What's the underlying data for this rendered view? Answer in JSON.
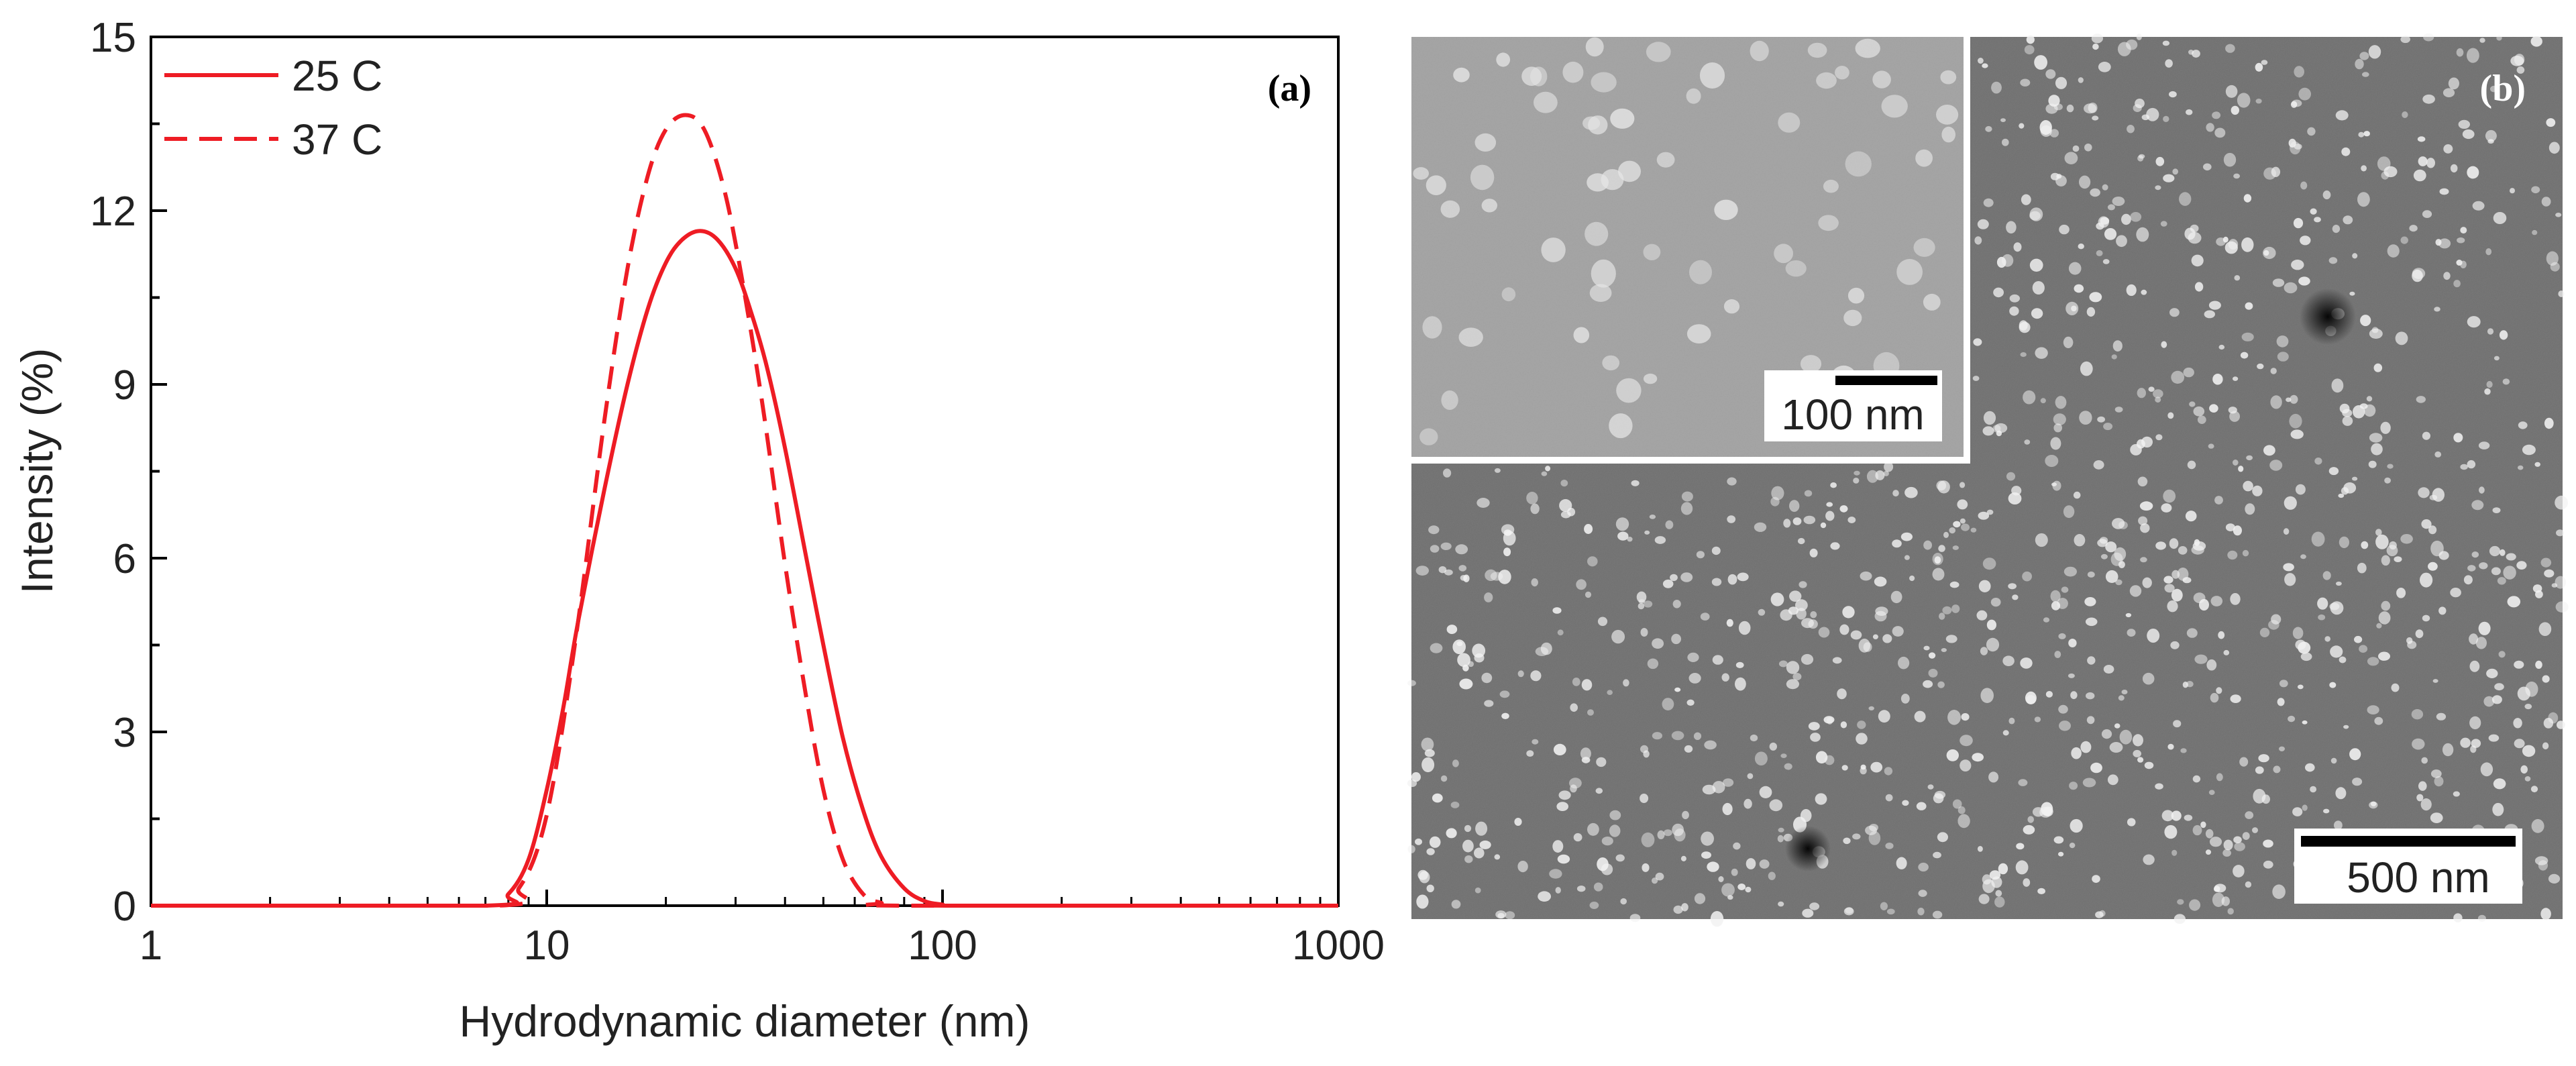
{
  "chart_data": {
    "type": "line",
    "panel_label": "(a)",
    "xlabel": "Hydrodynamic diameter (nm)",
    "ylabel": "Intensity (%)",
    "xscale": "log",
    "xlim": [
      1,
      1000
    ],
    "ylim": [
      0,
      15
    ],
    "xticks": [
      1,
      10,
      100,
      1000
    ],
    "xtick_labels": [
      "1",
      "10",
      "100",
      "1000"
    ],
    "yticks": [
      0,
      3,
      6,
      9,
      12,
      15
    ],
    "ytick_labels": [
      "0",
      "3",
      "6",
      "9",
      "12",
      "15"
    ],
    "legend_position": "top-left",
    "series": [
      {
        "name": "25 C",
        "style": "solid",
        "color": "#ee1c24",
        "x": [
          1,
          7,
          8,
          9,
          10,
          11,
          12,
          14,
          16,
          18,
          20,
          22,
          24.4,
          27,
          30,
          33,
          36,
          40,
          45,
          50,
          56,
          63,
          70,
          80,
          90,
          100,
          110,
          1000
        ],
        "y": [
          0,
          0,
          0.2,
          0.8,
          2.0,
          3.4,
          4.9,
          7.2,
          9.0,
          10.3,
          11.1,
          11.5,
          11.65,
          11.5,
          11.0,
          10.2,
          9.3,
          7.9,
          6.1,
          4.5,
          2.9,
          1.65,
          0.85,
          0.3,
          0.08,
          0.02,
          0,
          0
        ]
      },
      {
        "name": "37 C",
        "style": "dashed",
        "color": "#ee1c24",
        "x": [
          1,
          7.5,
          8.5,
          9.5,
          10.5,
          12,
          14,
          16,
          18,
          20,
          22.4,
          25,
          28,
          31,
          35,
          40,
          45,
          50,
          56,
          63,
          70,
          80,
          1000
        ],
        "y": [
          0,
          0,
          0.3,
          1.0,
          2.3,
          4.9,
          8.4,
          11.0,
          12.6,
          13.4,
          13.65,
          13.4,
          12.4,
          10.9,
          8.7,
          5.9,
          3.7,
          2.0,
          0.8,
          0.2,
          0.05,
          0,
          0
        ]
      }
    ]
  },
  "micrograph": {
    "panel_label": "(b)",
    "inset_scale_label": "100 nm",
    "main_scale_label": "500 nm"
  }
}
